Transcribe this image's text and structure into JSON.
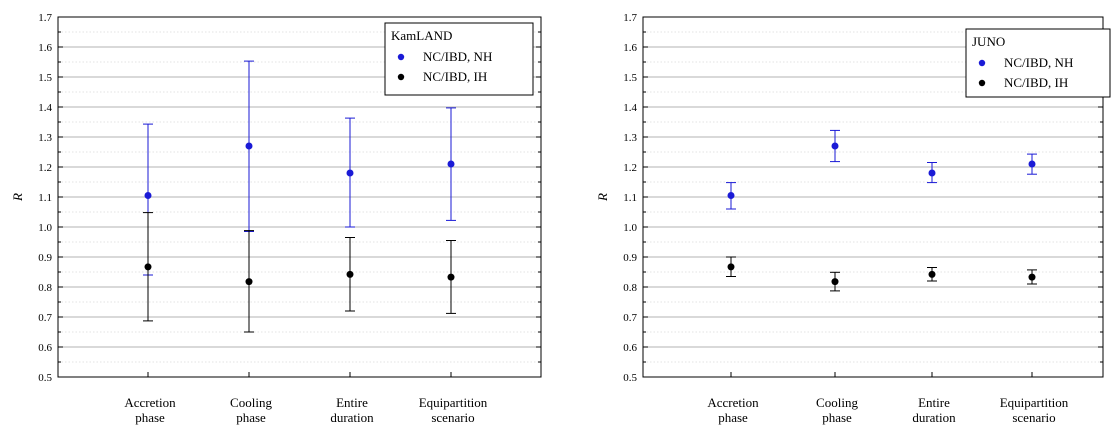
{
  "chart_data": [
    {
      "type": "scatter",
      "ylabel": "R",
      "ylim": [
        0.5,
        1.7
      ],
      "yticks": [
        "0.5",
        "0.6",
        "0.7",
        "0.8",
        "0.9",
        "1.0",
        "1.1",
        "1.2",
        "1.3",
        "1.4",
        "1.5",
        "1.6",
        "1.7"
      ],
      "grid": true,
      "categories": [
        [
          "Accretion",
          "phase"
        ],
        [
          "Cooling",
          "phase"
        ],
        [
          "Entire",
          "duration"
        ],
        [
          "Equipartition",
          "scenario"
        ]
      ],
      "legend": {
        "title": "KamLAND",
        "placement": "top-right"
      },
      "series": [
        {
          "name": "NC/IBD, NH",
          "color": "#1a1ad6",
          "values": [
            1.105,
            1.27,
            1.18,
            1.21
          ],
          "err_low": [
            0.84,
            0.985,
            1.0,
            1.022
          ],
          "err_high": [
            1.343,
            1.553,
            1.363,
            1.397
          ]
        },
        {
          "name": "NC/IBD, IH",
          "color": "#000000",
          "values": [
            0.867,
            0.818,
            0.842,
            0.833
          ],
          "err_low": [
            0.687,
            0.65,
            0.72,
            0.712
          ],
          "err_high": [
            1.048,
            0.988,
            0.965,
            0.955
          ]
        }
      ]
    },
    {
      "type": "scatter",
      "ylabel": "R",
      "ylim": [
        0.5,
        1.7
      ],
      "yticks": [
        "0.5",
        "0.6",
        "0.7",
        "0.8",
        "0.9",
        "1.0",
        "1.1",
        "1.2",
        "1.3",
        "1.4",
        "1.5",
        "1.6",
        "1.7"
      ],
      "grid": true,
      "categories": [
        [
          "Accretion",
          "phase"
        ],
        [
          "Cooling",
          "phase"
        ],
        [
          "Entire",
          "duration"
        ],
        [
          "Equipartition",
          "scenario"
        ]
      ],
      "legend": {
        "title": "JUNO",
        "placement": "top-right"
      },
      "series": [
        {
          "name": "NC/IBD, NH",
          "color": "#1a1ad6",
          "values": [
            1.105,
            1.27,
            1.18,
            1.21
          ],
          "err_low": [
            1.06,
            1.218,
            1.148,
            1.176
          ],
          "err_high": [
            1.148,
            1.322,
            1.215,
            1.243
          ]
        },
        {
          "name": "NC/IBD, IH",
          "color": "#000000",
          "values": [
            0.867,
            0.818,
            0.842,
            0.833
          ],
          "err_low": [
            0.835,
            0.787,
            0.82,
            0.81
          ],
          "err_high": [
            0.9,
            0.849,
            0.865,
            0.857
          ]
        }
      ]
    }
  ]
}
